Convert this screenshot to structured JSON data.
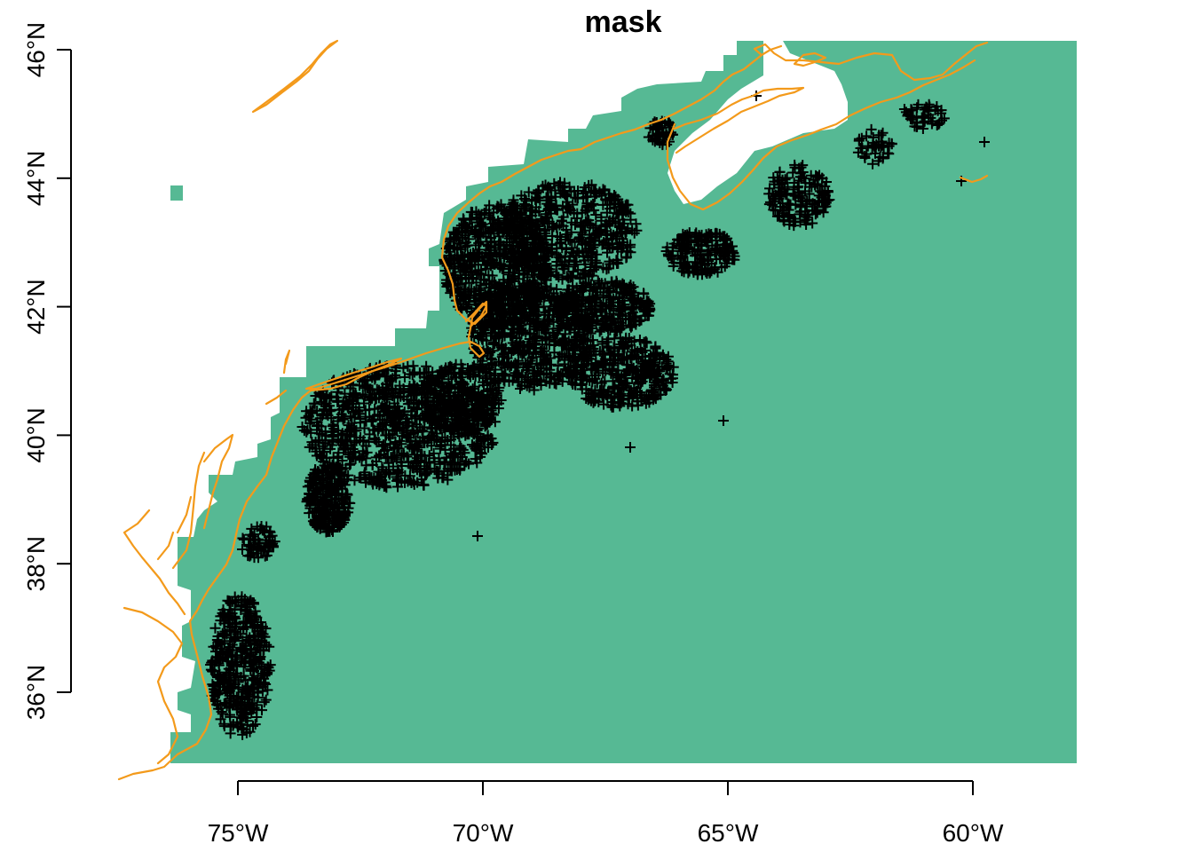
{
  "map": {
    "title": "mask",
    "colors": {
      "mask_fill": "#56B994",
      "coastline": "#F39A1B",
      "points": "#000000",
      "background": "#ffffff"
    },
    "point_symbol": "plus-marker",
    "extent": {
      "lon_min": -77.4,
      "lon_max": -57.9,
      "lat_min": 34.8,
      "lat_max": 46.2
    },
    "x_axis": {
      "ticks": [
        {
          "value": -75,
          "label": "75°W"
        },
        {
          "value": -70,
          "label": "70°W"
        },
        {
          "value": -65,
          "label": "65°W"
        },
        {
          "value": -60,
          "label": "60°W"
        }
      ]
    },
    "y_axis": {
      "ticks": [
        {
          "value": 36,
          "label": "36°N"
        },
        {
          "value": 38,
          "label": "38°N"
        },
        {
          "value": 40,
          "label": "40°N"
        },
        {
          "value": 42,
          "label": "42°N"
        },
        {
          "value": 44,
          "label": "44°N"
        },
        {
          "value": 46,
          "label": "46°N"
        }
      ]
    }
  }
}
